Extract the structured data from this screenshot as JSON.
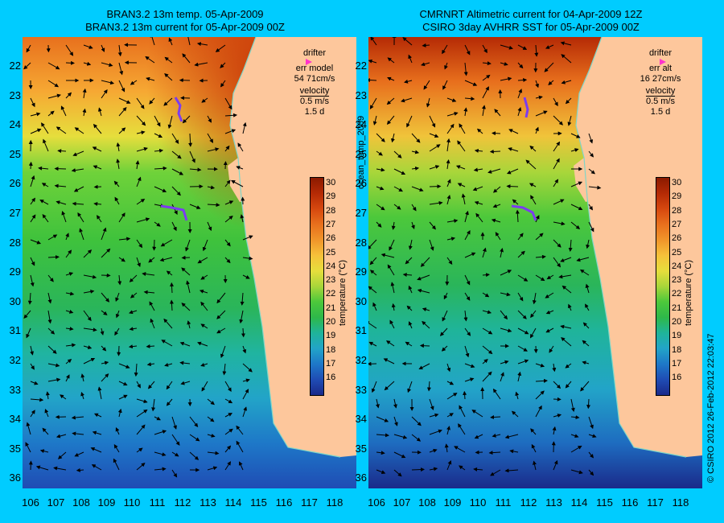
{
  "left_panel": {
    "title_line1": "BRAN3.2 13m temp. 05-Apr-2009",
    "title_line2": "BRAN3.2 13m current for 05-Apr-2009 00Z",
    "legend": {
      "drifter": "drifter",
      "err_label": "err model",
      "err_value": "54 71cm/s",
      "velocity": "velocity",
      "speed": "0.5 m/s",
      "duration": "1.5 d"
    }
  },
  "right_panel": {
    "title_line1": "CMRNRT Altimetric current for 04-Apr-2009 12Z",
    "title_line2": "CSIRO 3day AVHRR SST for 05-Apr-2009 00Z",
    "legend": {
      "drifter": "drifter",
      "err_label": "err alt",
      "err_value": "16 27cm/s",
      "velocity": "velocity",
      "speed": "0.5 m/s",
      "duration": "1.5 d"
    }
  },
  "latitudes": [
    "22",
    "23",
    "24",
    "25",
    "26",
    "27",
    "28",
    "29",
    "30",
    "31",
    "32",
    "33",
    "34",
    "35",
    "36"
  ],
  "longitudes": [
    "106",
    "107",
    "108",
    "109",
    "110",
    "111",
    "112",
    "113",
    "114",
    "115",
    "116",
    "117",
    "118"
  ],
  "colorbar": {
    "label": "temperature (°C)",
    "ticks": [
      "30",
      "29",
      "28",
      "27",
      "26",
      "25",
      "24",
      "23",
      "22",
      "21",
      "20",
      "19",
      "18",
      "17",
      "16"
    ],
    "colors": [
      "#8b1a00",
      "#b52a05",
      "#d6480f",
      "#e8701d",
      "#f0952a",
      "#f6c13a",
      "#e6de3c",
      "#a8d63a",
      "#4cc83b",
      "#2eb84a",
      "#1fb49a",
      "#22a4c8",
      "#1e78c8",
      "#1f4cb4",
      "#1a2a8a"
    ]
  },
  "side_label_left": "ocean_temp_2009",
  "side_label_right": "© CSIRO 2012   26-Feb-2012 22:03:47",
  "colors": {
    "background": "#00ccff",
    "land": "#fdc79c",
    "drifter": "#ff33cc",
    "drifter_track": "#7b3cf0"
  }
}
